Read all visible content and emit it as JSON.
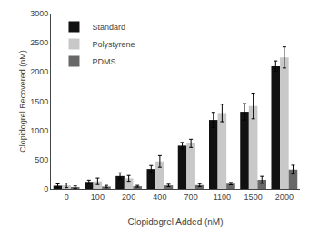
{
  "chart_data": {
    "type": "bar",
    "xlabel": "Clopidogrel Added (nM)",
    "ylabel": "Clopidogrel Recovered (nM)",
    "categories": [
      "0",
      "100",
      "200",
      "400",
      "700",
      "1100",
      "1500",
      "2000"
    ],
    "series": [
      {
        "name": "Standard",
        "color": "#111111",
        "values": [
          55,
          120,
          220,
          340,
          740,
          1180,
          1320,
          2100
        ],
        "errors": [
          30,
          30,
          55,
          60,
          55,
          130,
          140,
          90
        ]
      },
      {
        "name": "Polystyrene",
        "color": "#c8c8c8",
        "values": [
          60,
          130,
          180,
          470,
          780,
          1300,
          1420,
          2250
        ],
        "errors": [
          40,
          55,
          50,
          100,
          70,
          150,
          220,
          180
        ]
      },
      {
        "name": "PDMS",
        "color": "#686868",
        "values": [
          30,
          40,
          45,
          60,
          65,
          90,
          155,
          330
        ],
        "errors": [
          20,
          20,
          15,
          20,
          25,
          20,
          60,
          75
        ]
      }
    ],
    "ylim": [
      0,
      3000
    ],
    "yticks": [
      0,
      500,
      1000,
      1500,
      2000,
      2500,
      3000
    ],
    "legend": "upper left",
    "grid": false
  }
}
